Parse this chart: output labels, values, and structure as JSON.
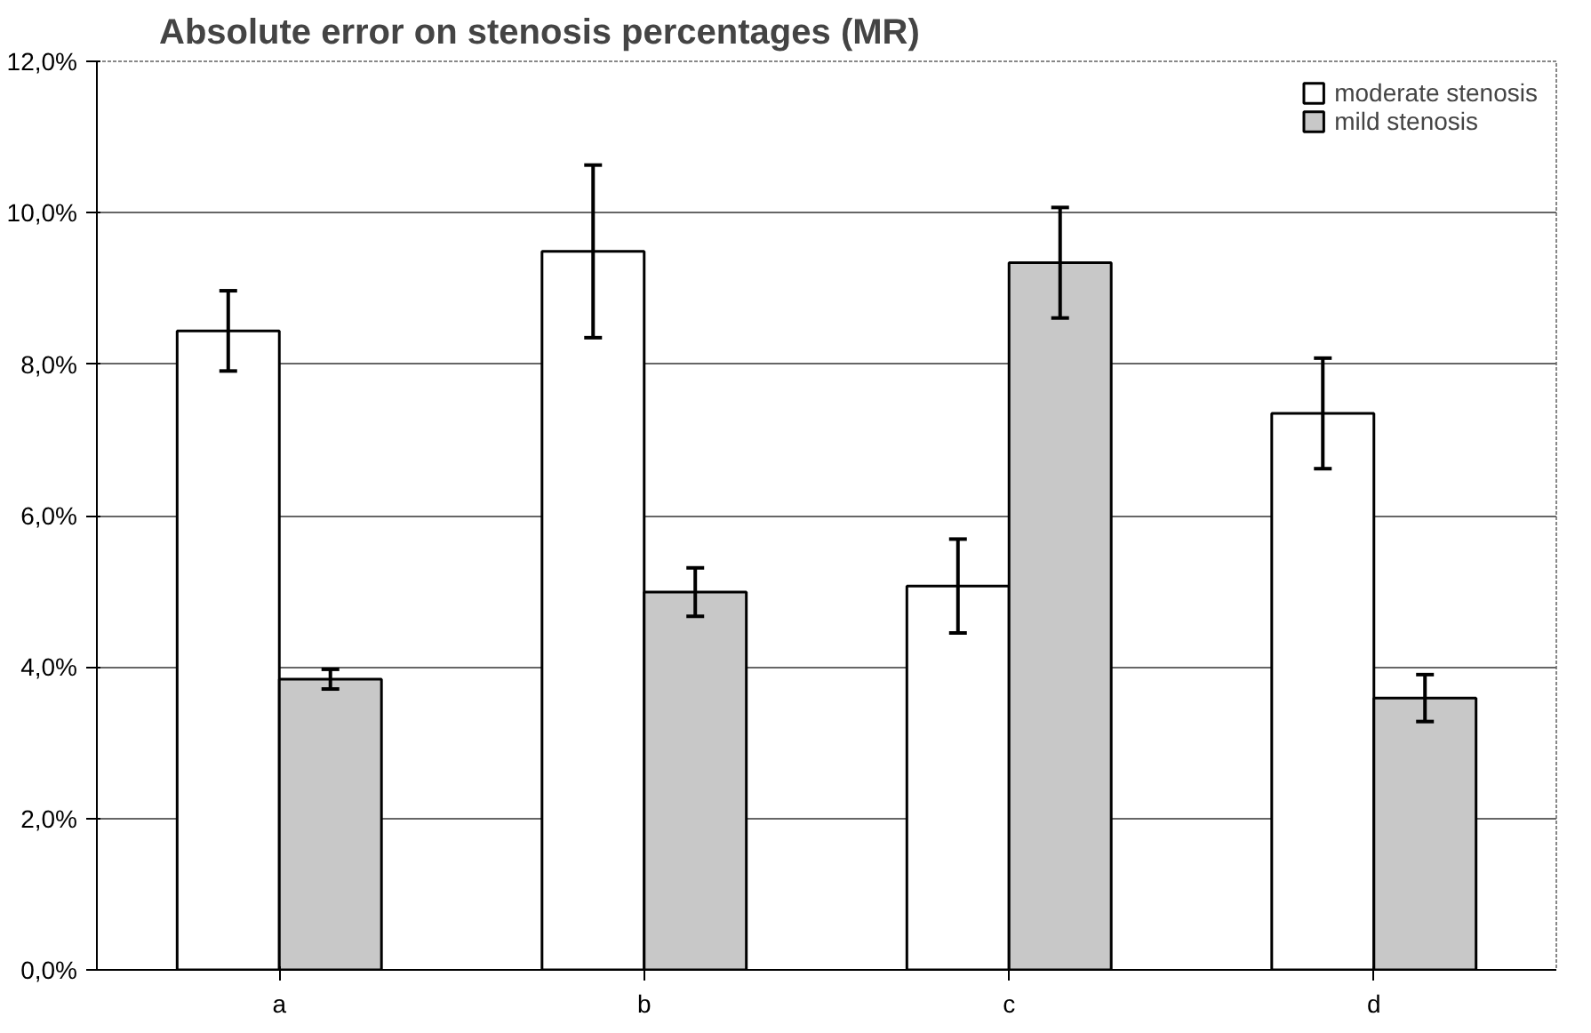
{
  "chart_data": {
    "type": "bar",
    "title": "Absolute error on stenosis percentages (MR)",
    "categories": [
      "a",
      "b",
      "c",
      "d"
    ],
    "series": [
      {
        "name": "moderate stenosis",
        "color": "#ffffff",
        "values": [
          8.44,
          9.49,
          5.07,
          7.35
        ],
        "errors": [
          0.53,
          1.14,
          0.62,
          0.73
        ]
      },
      {
        "name": "mild stenosis",
        "color": "#c8c8c8",
        "values": [
          3.84,
          4.99,
          9.34,
          3.59
        ],
        "errors": [
          0.13,
          0.32,
          0.73,
          0.31
        ]
      }
    ],
    "ylim": [
      0,
      12
    ],
    "yticks": [
      {
        "value": 0,
        "label": "0,0%"
      },
      {
        "value": 2,
        "label": "2,0%"
      },
      {
        "value": 4,
        "label": "4,0%"
      },
      {
        "value": 6,
        "label": "6,0%"
      },
      {
        "value": 8,
        "label": "8,0%"
      },
      {
        "value": 10,
        "label": "10,0%"
      },
      {
        "value": 12,
        "label": "12,0%"
      }
    ],
    "grid": "y",
    "legend": "top right"
  }
}
